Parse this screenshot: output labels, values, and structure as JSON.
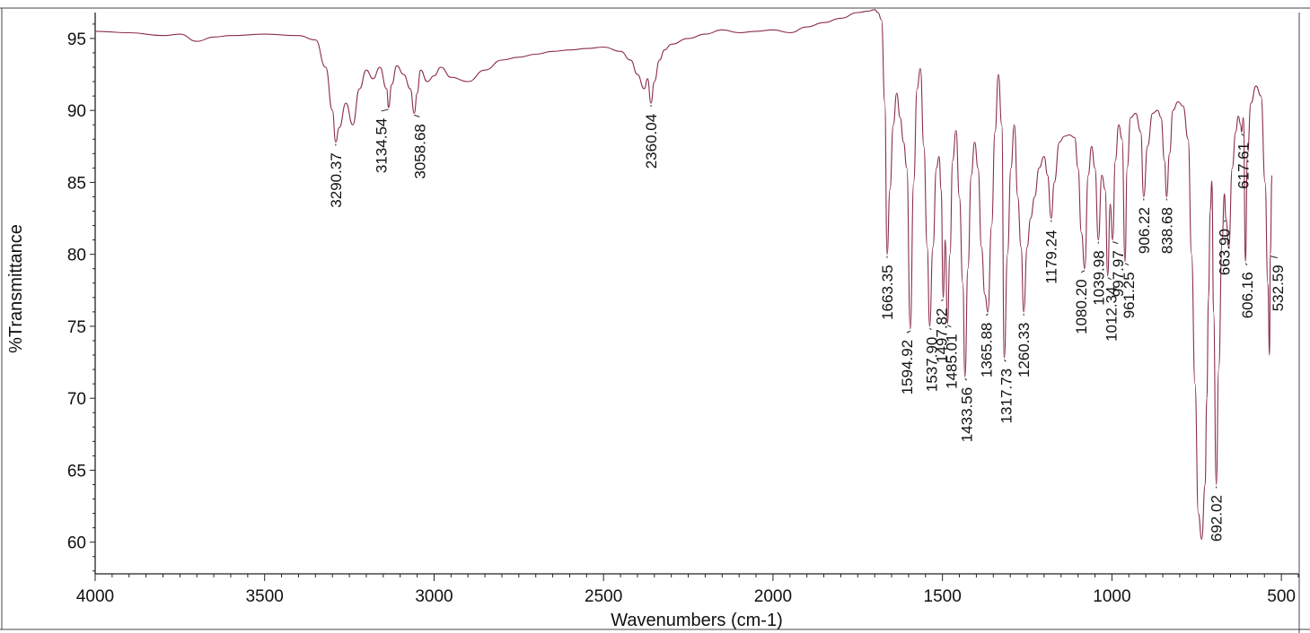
{
  "chart_data": {
    "type": "line",
    "xlabel": "Wavenumbers (cm-1)",
    "ylabel": "%Transmittance",
    "xlim": [
      4000,
      450
    ],
    "ylim": [
      57.8,
      96.8
    ],
    "x_reversed": true,
    "x_ticks": [
      4000,
      3500,
      3000,
      2500,
      2000,
      1500,
      1000,
      500
    ],
    "y_ticks": [
      60,
      65,
      70,
      75,
      80,
      85,
      90,
      95
    ],
    "line_color": "#8a2d4d",
    "series": [
      {
        "x": [
          4000,
          3900,
          3800,
          3750,
          3700,
          3650,
          3600,
          3500,
          3400,
          3350,
          3320,
          3300,
          3290.37,
          3280,
          3260,
          3240,
          3220,
          3200,
          3180,
          3160,
          3140,
          3134.54,
          3125,
          3110,
          3090,
          3070,
          3058.68,
          3050,
          3040,
          3020,
          3000,
          2980,
          2950,
          2900,
          2850,
          2800,
          2750,
          2700,
          2650,
          2600,
          2550,
          2500,
          2450,
          2420,
          2400,
          2380,
          2370,
          2360.04,
          2350,
          2335,
          2320,
          2300,
          2250,
          2200,
          2150,
          2100,
          2050,
          2000,
          1950,
          1900,
          1850,
          1800,
          1750,
          1720,
          1700,
          1690,
          1680,
          1670,
          1663.35,
          1655,
          1645,
          1635,
          1625,
          1615,
          1605,
          1594.92,
          1585,
          1575,
          1565,
          1555,
          1545,
          1537.9,
          1528,
          1518,
          1510,
          1504,
          1497.82,
          1492,
          1485.01,
          1478,
          1470,
          1460,
          1450,
          1440,
          1433.56,
          1425,
          1415,
          1405,
          1395,
          1385,
          1375,
          1365.88,
          1355,
          1345,
          1335,
          1325,
          1317.73,
          1308,
          1298,
          1288,
          1278,
          1268,
          1260.33,
          1250,
          1240,
          1228,
          1215,
          1200,
          1190,
          1179.24,
          1170,
          1155,
          1140,
          1125,
          1110,
          1100,
          1090,
          1080.2,
          1070,
          1060,
          1050,
          1039.98,
          1030,
          1020,
          1012.34,
          1005,
          997.97,
          990,
          980,
          970,
          961.25,
          955,
          945,
          930,
          915,
          906.22,
          895,
          880,
          865,
          855,
          845,
          838.68,
          830,
          820,
          805,
          790,
          775,
          765,
          755,
          745,
          735,
          725,
          720,
          715,
          710,
          705,
          700,
          692.02,
          685,
          675,
          668,
          663.9,
          655,
          645,
          635,
          627,
          620,
          617.61,
          612,
          606.16,
          600,
          590,
          575,
          560,
          548,
          540,
          535,
          532.59,
          528
        ],
        "y": [
          95.5,
          95.4,
          95.2,
          95.3,
          94.8,
          95.1,
          95.2,
          95.3,
          95.2,
          94.9,
          93.0,
          90.0,
          87.8,
          88.8,
          90.5,
          89.0,
          91.5,
          92.8,
          92.2,
          93.0,
          91.5,
          90.2,
          91.8,
          93.1,
          92.5,
          91.5,
          89.8,
          91.2,
          92.8,
          92.0,
          92.4,
          93.0,
          92.3,
          92.0,
          92.8,
          93.5,
          93.7,
          93.9,
          94.1,
          94.2,
          94.3,
          94.4,
          94.1,
          93.5,
          92.5,
          91.5,
          92.2,
          90.5,
          92.0,
          93.5,
          94.2,
          94.6,
          95.0,
          95.3,
          95.6,
          95.4,
          95.5,
          95.6,
          95.4,
          95.8,
          96.1,
          96.4,
          96.8,
          96.9,
          97.0,
          96.8,
          96.3,
          90.5,
          80.0,
          84.5,
          89.0,
          91.2,
          89.5,
          87.8,
          86.0,
          74.8,
          85.0,
          91.5,
          92.9,
          87.5,
          80.5,
          75.0,
          80.5,
          86.0,
          86.8,
          84.5,
          77.0,
          81.0,
          75.2,
          80.0,
          86.5,
          88.6,
          84.0,
          78.0,
          71.5,
          79.0,
          85.5,
          87.8,
          86.0,
          80.5,
          77.2,
          76.0,
          82.0,
          88.5,
          92.5,
          89.0,
          72.8,
          80.0,
          86.0,
          89.0,
          84.0,
          80.5,
          76.0,
          80.5,
          82.5,
          84.0,
          86.0,
          86.8,
          85.5,
          82.5,
          85.0,
          87.8,
          88.2,
          88.3,
          88.1,
          86.0,
          81.5,
          79.0,
          85.5,
          87.5,
          86.0,
          81.0,
          85.5,
          84.5,
          78.5,
          83.5,
          81.0,
          86.5,
          89.0,
          88.0,
          79.5,
          86.0,
          89.5,
          89.8,
          88.5,
          84.0,
          87.5,
          89.8,
          90.0,
          89.5,
          86.5,
          84.0,
          87.0,
          90.0,
          90.6,
          90.3,
          88.0,
          80.0,
          71.0,
          62.0,
          60.2,
          64.0,
          70.0,
          77.0,
          83.0,
          85.1,
          76.0,
          64.0,
          72.0,
          81.0,
          84.2,
          82.5,
          80.5,
          86.0,
          88.5,
          89.6,
          89.0,
          88.5,
          89.5,
          79.5,
          87.0,
          90.5,
          91.7,
          91.0,
          85.0,
          78.0,
          73.0,
          80.0,
          85.5
        ]
      }
    ],
    "peak_labels": [
      {
        "x": 3290.37,
        "text": "3290.37"
      },
      {
        "x": 3134.54,
        "text": "3134.54"
      },
      {
        "x": 3058.68,
        "text": "3058.68"
      },
      {
        "x": 2360.04,
        "text": "2360.04"
      },
      {
        "x": 1663.35,
        "text": "1663.35"
      },
      {
        "x": 1594.92,
        "text": "1594.92"
      },
      {
        "x": 1537.9,
        "text": "1537.90"
      },
      {
        "x": 1497.82,
        "text": "1497.82"
      },
      {
        "x": 1485.01,
        "text": "1485.01"
      },
      {
        "x": 1433.56,
        "text": "1433.56"
      },
      {
        "x": 1365.88,
        "text": "1365.88"
      },
      {
        "x": 1317.73,
        "text": "1317.73"
      },
      {
        "x": 1260.33,
        "text": "1260.33"
      },
      {
        "x": 1179.24,
        "text": "1179.24"
      },
      {
        "x": 1080.2,
        "text": "1080.20"
      },
      {
        "x": 1039.98,
        "text": "1039.98"
      },
      {
        "x": 1012.34,
        "text": "1012.34"
      },
      {
        "x": 997.97,
        "text": "997.97"
      },
      {
        "x": 961.25,
        "text": "961.25"
      },
      {
        "x": 906.22,
        "text": "906.22"
      },
      {
        "x": 838.68,
        "text": "838.68"
      },
      {
        "x": 692.02,
        "text": "692.02"
      },
      {
        "x": 663.9,
        "text": "663.90"
      },
      {
        "x": 617.61,
        "text": "617.61"
      },
      {
        "x": 606.16,
        "text": "606.16"
      },
      {
        "x": 532.59,
        "text": "532.59"
      }
    ]
  }
}
